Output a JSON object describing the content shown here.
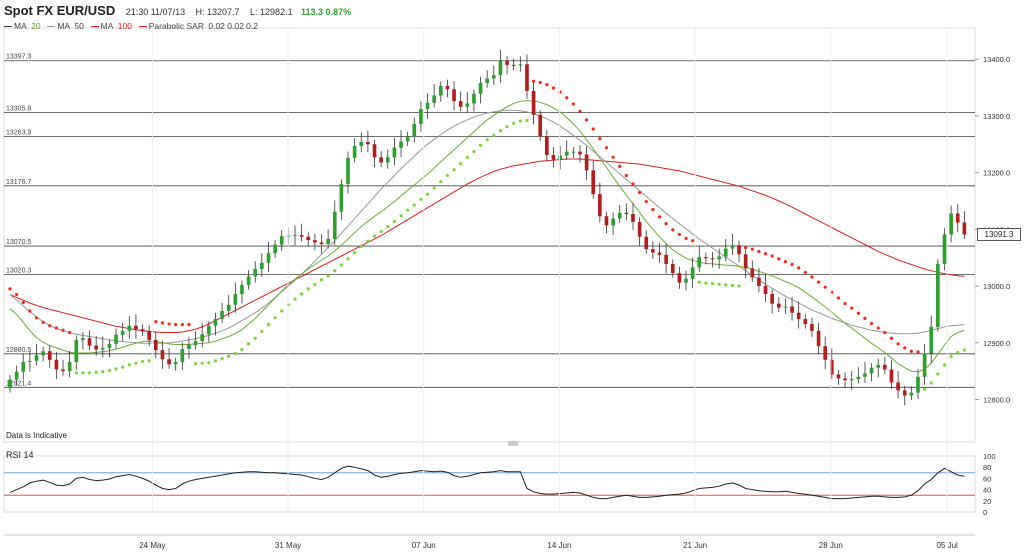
{
  "header": {
    "title": "Spot FX EUR/USD",
    "datetime": "21:30 11/07/13",
    "high": "H: 13207.7",
    "low": "L: 12982.1",
    "change": "113.3 0.87%"
  },
  "legend": {
    "ma_label": "MA",
    "ma20_value": "20",
    "ma50_label": "MA",
    "ma50_value": "50",
    "ma100_label": "MA",
    "ma100_value": "100",
    "sar_label": "Parabolic SAR",
    "sar_params": "0.02  0.02  0.2"
  },
  "notes": {
    "data_indicative": "Data is Indicative",
    "rsi_label": "RSI 14",
    "last_price_box": "13091.3"
  },
  "colors": {
    "bull": "#2e9e2e",
    "bear": "#b31d1d",
    "ma20": "#6aab3a",
    "ma50": "#999999",
    "ma100": "#d22222",
    "sar_up": "#7cd33a",
    "sar_down": "#ee2a1a",
    "rsi_line": "#222222",
    "rsi_upper": "#6aa5d8",
    "rsi_lower": "#e0505a"
  },
  "chart_data": [
    {
      "type": "candlestick",
      "title": "Spot FX EUR/USD",
      "x_tick_labels": [
        "24 May",
        "31 May",
        "07 Jun",
        "14 Jun",
        "21 Jun",
        "28 Jun",
        "05 Jul"
      ],
      "y_tick_labels": [
        12800,
        12900,
        13000,
        13100,
        13200,
        13300,
        13400
      ],
      "ylim": [
        12725,
        13455
      ],
      "horizontal_levels": [
        13397.3,
        13305.8,
        13263.9,
        13176.7,
        13070.5,
        13020.3,
        12880.5,
        12821.4
      ],
      "horizontal_level_labels": [
        "13397.3",
        "13305.8",
        "13263.9",
        "13176.7",
        "13070.5",
        "13020.3",
        "12880.5",
        "12821.4"
      ],
      "candles_close": [
        12835,
        12849,
        12866,
        12868,
        12878,
        12885,
        12870,
        12853,
        12850,
        12866,
        12905,
        12908,
        12895,
        12888,
        12891,
        12898,
        12914,
        12921,
        12930,
        12924,
        12920,
        12905,
        12887,
        12871,
        12862,
        12866,
        12889,
        12896,
        12903,
        12915,
        12930,
        12942,
        12956,
        12967,
        12986,
        13002,
        13017,
        13030,
        13041,
        13058,
        13073,
        13088,
        13089,
        13090,
        13087,
        13081,
        13077,
        13074,
        13083,
        13131,
        13180,
        13226,
        13247,
        13254,
        13250,
        13227,
        13218,
        13227,
        13244,
        13255,
        13264,
        13286,
        13312,
        13323,
        13336,
        13353,
        13347,
        13326,
        13316,
        13322,
        13339,
        13358,
        13366,
        13372,
        13397,
        13390,
        13389,
        13391,
        13344,
        13302,
        13264,
        13231,
        13223,
        13230,
        13237,
        13237,
        13232,
        13204,
        13162,
        13123,
        13107,
        13119,
        13129,
        13127,
        13113,
        13087,
        13065,
        13059,
        13055,
        13039,
        13023,
        13006,
        13013,
        13033,
        13051,
        13049,
        13047,
        13052,
        13066,
        13072,
        13056,
        13031,
        13015,
        13000,
        12986,
        12969,
        12962,
        12964,
        12953,
        12942,
        12933,
        12921,
        12894,
        12870,
        12844,
        12837,
        12834,
        12836,
        12840,
        12846,
        12856,
        12861,
        12853,
        12830,
        12816,
        12807,
        12812,
        12840,
        12881,
        12928,
        13039,
        13091,
        13128,
        13112,
        13091
      ],
      "candles_open": [
        12820,
        12835,
        12849,
        12866,
        12868,
        12878,
        12885,
        12870,
        12853,
        12850,
        12866,
        12905,
        12908,
        12895,
        12888,
        12891,
        12898,
        12914,
        12921,
        12930,
        12924,
        12920,
        12905,
        12887,
        12871,
        12862,
        12866,
        12889,
        12896,
        12903,
        12915,
        12930,
        12942,
        12956,
        12967,
        12986,
        13002,
        13017,
        13030,
        13041,
        13058,
        13073,
        13088,
        13089,
        13090,
        13087,
        13081,
        13077,
        13074,
        13083,
        13131,
        13180,
        13226,
        13247,
        13254,
        13250,
        13227,
        13218,
        13227,
        13244,
        13255,
        13264,
        13286,
        13312,
        13323,
        13336,
        13353,
        13347,
        13326,
        13316,
        13322,
        13339,
        13358,
        13366,
        13372,
        13397,
        13390,
        13389,
        13391,
        13344,
        13302,
        13264,
        13231,
        13223,
        13230,
        13237,
        13237,
        13232,
        13204,
        13162,
        13123,
        13107,
        13119,
        13129,
        13127,
        13113,
        13087,
        13065,
        13059,
        13055,
        13039,
        13023,
        13006,
        13013,
        13033,
        13051,
        13049,
        13047,
        13052,
        13066,
        13072,
        13056,
        13031,
        13015,
        13000,
        12986,
        12969,
        12962,
        12964,
        12953,
        12942,
        12933,
        12921,
        12894,
        12870,
        12844,
        12837,
        12834,
        12836,
        12840,
        12846,
        12856,
        12861,
        12853,
        12830,
        12816,
        12807,
        12812,
        12840,
        12881,
        12928,
        13039,
        13091,
        13128,
        13112
      ],
      "ma20": [
        12960,
        12950,
        12936,
        12921,
        12909,
        12901,
        12895,
        12891,
        12887,
        12883,
        12882,
        12882,
        12882,
        12883,
        12884,
        12886,
        12889,
        12892,
        12896,
        12899,
        12902,
        12903,
        12902,
        12900,
        12898,
        12897,
        12897,
        12897,
        12898,
        12899,
        12900,
        12903,
        12907,
        12911,
        12916,
        12923,
        12933,
        12943,
        12955,
        12967,
        12979,
        12991,
        13002,
        13012,
        13021,
        13030,
        13038,
        13046,
        13053,
        13062,
        13072,
        13083,
        13094,
        13105,
        13114,
        13123,
        13131,
        13140,
        13149,
        13159,
        13169,
        13178,
        13188,
        13197,
        13208,
        13219,
        13230,
        13240,
        13251,
        13262,
        13272,
        13283,
        13293,
        13301,
        13309,
        13316,
        13322,
        13326,
        13327,
        13326,
        13324,
        13320,
        13314,
        13307,
        13297,
        13286,
        13273,
        13258,
        13242,
        13225,
        13209,
        13192,
        13176,
        13160,
        13145,
        13130,
        13114,
        13100,
        13087,
        13075,
        13064,
        13056,
        13049,
        13045,
        13042,
        13040,
        13039,
        13038,
        13037,
        13036,
        13035,
        13033,
        13030,
        13026,
        13022,
        13018,
        13013,
        13008,
        13003,
        12997,
        12989,
        12981,
        12972,
        12963,
        12954,
        12944,
        12934,
        12926,
        12917,
        12908,
        12899,
        12891,
        12883,
        12873,
        12863,
        12856,
        12850,
        12849,
        12853,
        12864,
        12880,
        12896,
        12911,
        12918,
        12922
      ],
      "ma50": [
        12985,
        12975,
        12965,
        12955,
        12946,
        12937,
        12930,
        12925,
        12921,
        12918,
        12915,
        12913,
        12911,
        12909,
        12907,
        12905,
        12903,
        12902,
        12901,
        12900,
        12899,
        12899,
        12899,
        12899,
        12900,
        12901,
        12903,
        12905,
        12907,
        12910,
        12913,
        12917,
        12921,
        12926,
        12932,
        12939,
        12946,
        12953,
        12961,
        12970,
        12980,
        12990,
        13000,
        13010,
        13021,
        13032,
        13044,
        13056,
        13068,
        13080,
        13093,
        13106,
        13119,
        13132,
        13145,
        13158,
        13171,
        13183,
        13195,
        13207,
        13218,
        13229,
        13240,
        13250,
        13259,
        13267,
        13275,
        13282,
        13288,
        13293,
        13298,
        13302,
        13305,
        13307,
        13309,
        13310,
        13310,
        13309,
        13307,
        13304,
        13300,
        13295,
        13289,
        13282,
        13274,
        13266,
        13257,
        13248,
        13238,
        13228,
        13218,
        13208,
        13198,
        13188,
        13178,
        13168,
        13158,
        13148,
        13138,
        13128,
        13119,
        13110,
        13101,
        13092,
        13083,
        13075,
        13067,
        13059,
        13051,
        13043,
        13035,
        13027,
        13019,
        13011,
        13003,
        12996,
        12989,
        12982,
        12976,
        12970,
        12964,
        12958,
        12953,
        12948,
        12943,
        12939,
        12935,
        12931,
        12928,
        12925,
        12922,
        12920,
        12918,
        12917,
        12916,
        12916,
        12916,
        12917,
        12919,
        12922,
        12925,
        12928,
        12930,
        12931,
        12932
      ],
      "ma100": [
        12985,
        12980,
        12975,
        12970,
        12966,
        12962,
        12959,
        12956,
        12953,
        12950,
        12947,
        12944,
        12941,
        12938,
        12935,
        12932,
        12929,
        12927,
        12925,
        12923,
        12921,
        12920,
        12919,
        12918,
        12918,
        12918,
        12919,
        12921,
        12924,
        12928,
        12933,
        12939,
        12945,
        12951,
        12957,
        12963,
        12969,
        12975,
        12981,
        12987,
        12993,
        12999,
        13005,
        13011,
        13017,
        13023,
        13029,
        13035,
        13041,
        13047,
        13053,
        13059,
        13065,
        13071,
        13077,
        13083,
        13089,
        13096,
        13103,
        13110,
        13117,
        13124,
        13131,
        13138,
        13145,
        13152,
        13159,
        13166,
        13173,
        13180,
        13186,
        13192,
        13197,
        13202,
        13206,
        13209,
        13212,
        13214,
        13216,
        13218,
        13220,
        13221,
        13222,
        13223,
        13224,
        13224,
        13224,
        13223,
        13222,
        13221,
        13220,
        13219,
        13218,
        13217,
        13216,
        13215,
        13213,
        13211,
        13209,
        13207,
        13205,
        13203,
        13200,
        13197,
        13194,
        13191,
        13188,
        13185,
        13182,
        13179,
        13176,
        13172,
        13168,
        13164,
        13160,
        13155,
        13150,
        13145,
        13139,
        13133,
        13127,
        13121,
        13115,
        13109,
        13103,
        13097,
        13091,
        13085,
        13079,
        13073,
        13067,
        13061,
        13056,
        13051,
        13046,
        13042,
        13038,
        13034,
        13030,
        13027,
        13024,
        13022,
        13020,
        13018,
        13017
      ],
      "rsi": [
        35,
        40,
        45,
        52,
        55,
        57,
        53,
        48,
        47,
        50,
        60,
        62,
        58,
        56,
        57,
        59,
        63,
        65,
        67,
        64,
        60,
        55,
        48,
        42,
        40,
        42,
        50,
        55,
        58,
        60,
        62,
        64,
        66,
        68,
        70,
        71,
        72,
        72,
        71,
        70,
        70,
        69,
        68,
        67,
        66,
        63,
        60,
        58,
        62,
        70,
        78,
        82,
        80,
        77,
        74,
        66,
        62,
        64,
        67,
        69,
        70,
        72,
        74,
        73,
        72,
        73,
        71,
        65,
        62,
        64,
        67,
        70,
        71,
        72,
        74,
        72,
        72,
        72,
        42,
        36,
        33,
        32,
        32,
        33,
        34,
        35,
        34,
        30,
        26,
        24,
        24,
        26,
        28,
        30,
        28,
        26,
        26,
        27,
        28,
        30,
        31,
        32,
        34,
        38,
        42,
        43,
        44,
        46,
        50,
        52,
        48,
        42,
        40,
        38,
        37,
        36,
        36,
        37,
        35,
        33,
        32,
        30,
        28,
        26,
        24,
        24,
        24,
        25,
        26,
        27,
        28,
        28,
        27,
        26,
        26,
        27,
        30,
        38,
        50,
        58,
        70,
        78,
        72,
        66,
        64
      ],
      "rsi_ylim": [
        0,
        100
      ],
      "rsi_tick_labels": [
        0,
        20,
        40,
        60,
        80,
        100
      ],
      "rsi_levels": [
        70,
        30
      ]
    }
  ]
}
